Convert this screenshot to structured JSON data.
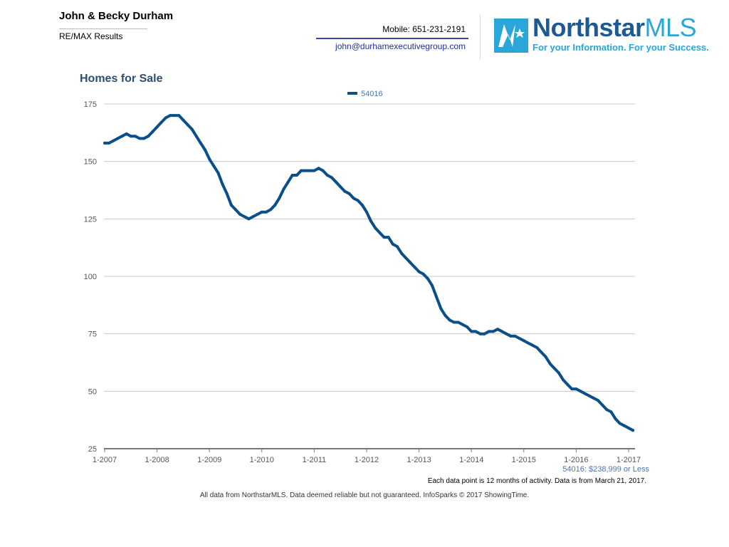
{
  "agent": {
    "name": "John & Becky Durham",
    "company": "RE/MAX Results",
    "mobile": "Mobile: 651-231-2191",
    "email": "john@durhamexecutivegroup.com"
  },
  "logo": {
    "name_main": "Northstar",
    "name_suffix": "MLS",
    "tagline": "For your Information. For your Success.",
    "icon": "northstar-logo-icon",
    "colors": {
      "primary": "#1d5a93",
      "accent": "#2aa7d8"
    }
  },
  "chart_data": {
    "type": "line",
    "title": "Homes for Sale",
    "xlabel": "",
    "ylabel": "",
    "ylim": [
      25,
      175
    ],
    "yticks": [
      25,
      50,
      75,
      100,
      125,
      150,
      175
    ],
    "xtick_labels": [
      "1-2007",
      "1-2008",
      "1-2009",
      "1-2010",
      "1-2011",
      "1-2012",
      "1-2013",
      "1-2014",
      "1-2015",
      "1-2016",
      "1-2017"
    ],
    "grid": true,
    "legend": "top-center",
    "line_color": "#0b4f8a",
    "series": [
      {
        "name": "54016",
        "x": [
          "2007-01",
          "2007-02",
          "2007-03",
          "2007-04",
          "2007-05",
          "2007-06",
          "2007-07",
          "2007-08",
          "2007-09",
          "2007-10",
          "2007-11",
          "2007-12",
          "2008-01",
          "2008-02",
          "2008-03",
          "2008-04",
          "2008-05",
          "2008-06",
          "2008-07",
          "2008-08",
          "2008-09",
          "2008-10",
          "2008-11",
          "2008-12",
          "2009-01",
          "2009-02",
          "2009-03",
          "2009-04",
          "2009-05",
          "2009-06",
          "2009-07",
          "2009-08",
          "2009-09",
          "2009-10",
          "2009-11",
          "2009-12",
          "2010-01",
          "2010-02",
          "2010-03",
          "2010-04",
          "2010-05",
          "2010-06",
          "2010-07",
          "2010-08",
          "2010-09",
          "2010-10",
          "2010-11",
          "2010-12",
          "2011-01",
          "2011-02",
          "2011-03",
          "2011-04",
          "2011-05",
          "2011-06",
          "2011-07",
          "2011-08",
          "2011-09",
          "2011-10",
          "2011-11",
          "2011-12",
          "2012-01",
          "2012-02",
          "2012-03",
          "2012-04",
          "2012-05",
          "2012-06",
          "2012-07",
          "2012-08",
          "2012-09",
          "2012-10",
          "2012-11",
          "2012-12",
          "2013-01",
          "2013-02",
          "2013-03",
          "2013-04",
          "2013-05",
          "2013-06",
          "2013-07",
          "2013-08",
          "2013-09",
          "2013-10",
          "2013-11",
          "2013-12",
          "2014-01",
          "2014-02",
          "2014-03",
          "2014-04",
          "2014-05",
          "2014-06",
          "2014-07",
          "2014-08",
          "2014-09",
          "2014-10",
          "2014-11",
          "2014-12",
          "2015-01",
          "2015-02",
          "2015-03",
          "2015-04",
          "2015-05",
          "2015-06",
          "2015-07",
          "2015-08",
          "2015-09",
          "2015-10",
          "2015-11",
          "2015-12",
          "2016-01",
          "2016-02",
          "2016-03",
          "2016-04",
          "2016-05",
          "2016-06",
          "2016-07",
          "2016-08",
          "2016-09",
          "2016-10",
          "2016-11",
          "2016-12",
          "2017-01",
          "2017-02"
        ],
        "values": [
          158,
          158,
          159,
          160,
          161,
          162,
          161,
          161,
          160,
          160,
          161,
          163,
          165,
          167,
          169,
          170,
          170,
          170,
          168,
          166,
          164,
          161,
          158,
          155,
          151,
          148,
          145,
          140,
          136,
          131,
          129,
          127,
          126,
          125,
          126,
          127,
          128,
          128,
          129,
          131,
          134,
          138,
          141,
          144,
          144,
          146,
          146,
          146,
          146,
          147,
          146,
          144,
          143,
          141,
          139,
          137,
          136,
          134,
          133,
          131,
          128,
          124,
          121,
          119,
          117,
          117,
          114,
          113,
          110,
          108,
          106,
          104,
          102,
          101,
          99,
          96,
          91,
          86,
          83,
          81,
          80,
          80,
          79,
          78,
          76,
          76,
          75,
          75,
          76,
          76,
          77,
          76,
          75,
          74,
          74,
          73,
          72,
          71,
          70,
          69,
          67,
          65,
          62,
          60,
          58,
          55,
          53,
          51,
          51,
          50,
          49,
          48,
          47,
          46,
          44,
          42,
          41,
          38,
          36,
          35,
          34,
          33
        ]
      }
    ],
    "series_note": "54016: $238,999 or Less",
    "footnote": "Each data point is 12 months of activity. Data is from March 21, 2017."
  },
  "disclaimer": "All data from NorthstarMLS. Data deemed reliable but not guaranteed. InfoSparks © 2017 ShowingTime."
}
